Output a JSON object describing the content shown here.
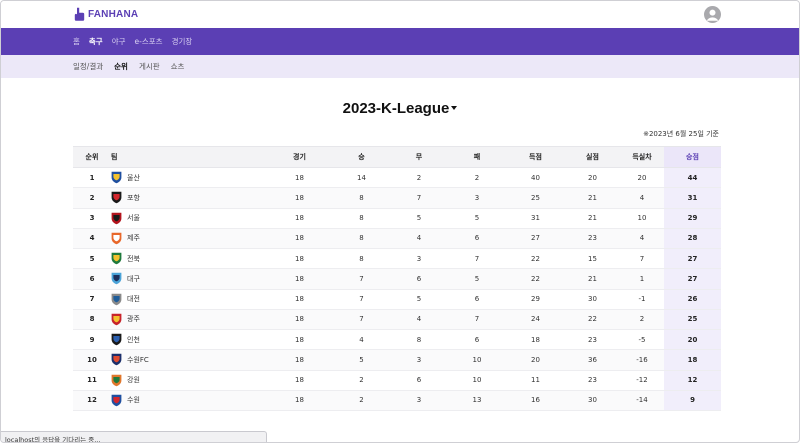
{
  "app": {
    "logo_text": "FANHANA",
    "logo_icon": "foam-finger-icon",
    "avatar_icon": "user-avatar-icon"
  },
  "main_nav": {
    "items": [
      {
        "label": "홈",
        "active": false
      },
      {
        "label": "축구",
        "active": true
      },
      {
        "label": "야구",
        "active": false
      },
      {
        "label": "e-스포츠",
        "active": false
      },
      {
        "label": "경기장",
        "active": false
      }
    ]
  },
  "sub_nav": {
    "items": [
      {
        "label": "일정/결과",
        "active": false
      },
      {
        "label": "순위",
        "active": true
      },
      {
        "label": "게시판",
        "active": false
      },
      {
        "label": "쇼츠",
        "active": false
      }
    ]
  },
  "season_selector": {
    "selected": "2023-K-League",
    "icon": "caret-down-icon"
  },
  "as_of": "※2023년 6월 25일 기준",
  "table": {
    "headers": {
      "rank": "순위",
      "team": "팀",
      "played": "경기",
      "won": "승",
      "drawn": "무",
      "lost": "패",
      "goals_for": "득점",
      "goals_against": "실점",
      "goal_diff": "득실차",
      "points": "승점"
    },
    "rows": [
      {
        "rank": "1",
        "team": "울산",
        "played": "18",
        "won": "14",
        "drawn": "2",
        "lost": "2",
        "gf": "40",
        "ga": "20",
        "gd": "20",
        "pts": "44",
        "crest_color": "#1f4fa0",
        "crest_accent": "#f2c12e"
      },
      {
        "rank": "2",
        "team": "포항",
        "played": "18",
        "won": "8",
        "drawn": "7",
        "lost": "3",
        "gf": "25",
        "ga": "21",
        "gd": "4",
        "pts": "31",
        "crest_color": "#1a1a1a",
        "crest_accent": "#d3262d"
      },
      {
        "rank": "3",
        "team": "서울",
        "played": "18",
        "won": "8",
        "drawn": "5",
        "lost": "5",
        "gf": "31",
        "ga": "21",
        "gd": "10",
        "pts": "29",
        "crest_color": "#b3141d",
        "crest_accent": "#1a1a1a"
      },
      {
        "rank": "4",
        "team": "제주",
        "played": "18",
        "won": "8",
        "drawn": "4",
        "lost": "6",
        "gf": "27",
        "ga": "23",
        "gd": "4",
        "pts": "28",
        "crest_color": "#e8672a",
        "crest_accent": "#ffffff"
      },
      {
        "rank": "5",
        "team": "전북",
        "played": "18",
        "won": "8",
        "drawn": "3",
        "lost": "7",
        "gf": "22",
        "ga": "15",
        "gd": "7",
        "pts": "27",
        "crest_color": "#1f7a3c",
        "crest_accent": "#f2c12e"
      },
      {
        "rank": "6",
        "team": "대구",
        "played": "18",
        "won": "7",
        "drawn": "6",
        "lost": "5",
        "gf": "22",
        "ga": "21",
        "gd": "1",
        "pts": "27",
        "crest_color": "#4aa3d8",
        "crest_accent": "#1c2f5c"
      },
      {
        "rank": "7",
        "team": "대전",
        "played": "18",
        "won": "7",
        "drawn": "5",
        "lost": "6",
        "gf": "29",
        "ga": "30",
        "gd": "-1",
        "pts": "26",
        "crest_color": "#8a8a8a",
        "crest_accent": "#1f5d9a"
      },
      {
        "rank": "8",
        "team": "광주",
        "played": "18",
        "won": "7",
        "drawn": "4",
        "lost": "7",
        "gf": "24",
        "ga": "22",
        "gd": "2",
        "pts": "25",
        "crest_color": "#c8242b",
        "crest_accent": "#f2c12e"
      },
      {
        "rank": "9",
        "team": "인천",
        "played": "18",
        "won": "4",
        "drawn": "8",
        "lost": "6",
        "gf": "18",
        "ga": "23",
        "gd": "-5",
        "pts": "20",
        "crest_color": "#1a1a1a",
        "crest_accent": "#2b5fb0"
      },
      {
        "rank": "10",
        "team": "수원FC",
        "played": "18",
        "won": "5",
        "drawn": "3",
        "lost": "10",
        "gf": "20",
        "ga": "36",
        "gd": "-16",
        "pts": "18",
        "crest_color": "#1c2f6b",
        "crest_accent": "#e04a2f"
      },
      {
        "rank": "11",
        "team": "강원",
        "played": "18",
        "won": "2",
        "drawn": "6",
        "lost": "10",
        "gf": "11",
        "ga": "23",
        "gd": "-12",
        "pts": "12",
        "crest_color": "#e0772c",
        "crest_accent": "#1f7a3c"
      },
      {
        "rank": "12",
        "team": "수원",
        "played": "18",
        "won": "2",
        "drawn": "3",
        "lost": "13",
        "gf": "16",
        "ga": "30",
        "gd": "-14",
        "pts": "9",
        "crest_color": "#1f4fa0",
        "crest_accent": "#d3262d"
      }
    ]
  },
  "status_bar": {
    "text": "localhost의 응답을 기다리는 중..."
  },
  "colors": {
    "brand": "#5b3fb4",
    "subnav_bg": "#ece8f8",
    "points_column": "#f1eefb"
  }
}
